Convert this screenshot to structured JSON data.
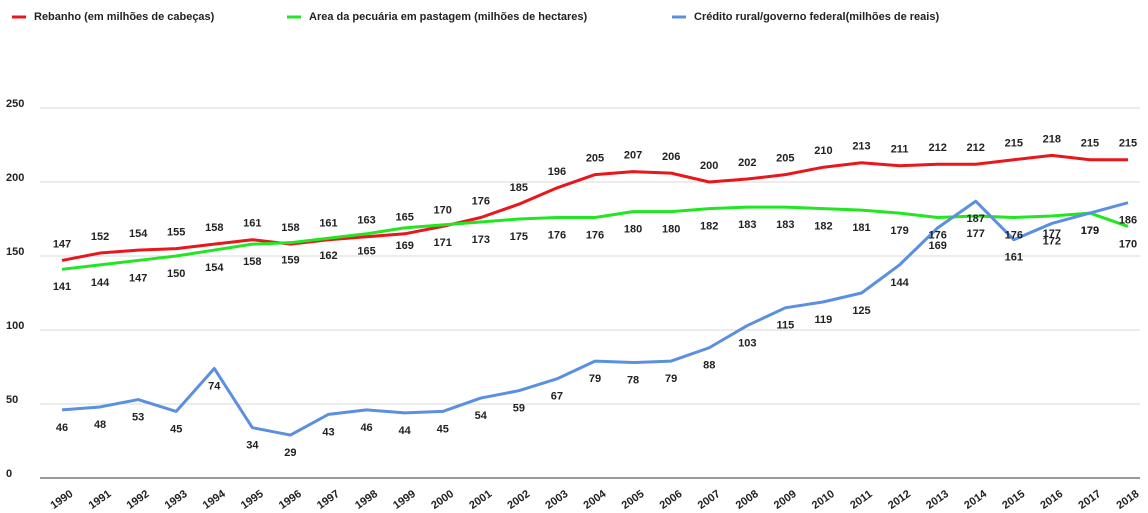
{
  "chart_data": {
    "type": "line",
    "categories": [
      "1990",
      "1991",
      "1992",
      "1993",
      "1994",
      "1995",
      "1996",
      "1997",
      "1998",
      "1999",
      "2000",
      "2001",
      "2002",
      "2003",
      "2004",
      "2005",
      "2006",
      "2007",
      "2008",
      "2009",
      "2010",
      "2011",
      "2012",
      "2013",
      "2014",
      "2015",
      "2016",
      "2017",
      "2018"
    ],
    "series": [
      {
        "name": "Rebanho (em milhões de cabeças)",
        "color": "#e8171c",
        "values": [
          147,
          152,
          154,
          155,
          158,
          161,
          158,
          161,
          163,
          165,
          170,
          176,
          185,
          196,
          205,
          207,
          206,
          200,
          202,
          205,
          210,
          213,
          211,
          212,
          212,
          215,
          218,
          215,
          215
        ]
      },
      {
        "name": "Area da pecuária em pastagem (milhões de hectares)",
        "color": "#22e622",
        "values": [
          141,
          144,
          147,
          150,
          154,
          158,
          159,
          162,
          165,
          169,
          171,
          173,
          175,
          176,
          176,
          180,
          180,
          182,
          183,
          183,
          182,
          181,
          179,
          176,
          177,
          176,
          177,
          179,
          170
        ]
      },
      {
        "name": "Crédito rural/governo federal(milhões de reais)",
        "color": "#5b8fe0",
        "values": [
          46,
          48,
          53,
          45,
          74,
          34,
          29,
          43,
          46,
          44,
          45,
          54,
          59,
          67,
          79,
          78,
          79,
          88,
          103,
          115,
          119,
          125,
          144,
          169,
          187,
          161,
          172,
          179,
          186
        ]
      }
    ],
    "ylim": [
      0,
      250
    ],
    "yticks": [
      0,
      50,
      100,
      150,
      200,
      250
    ],
    "grid": true,
    "legend": "top"
  }
}
